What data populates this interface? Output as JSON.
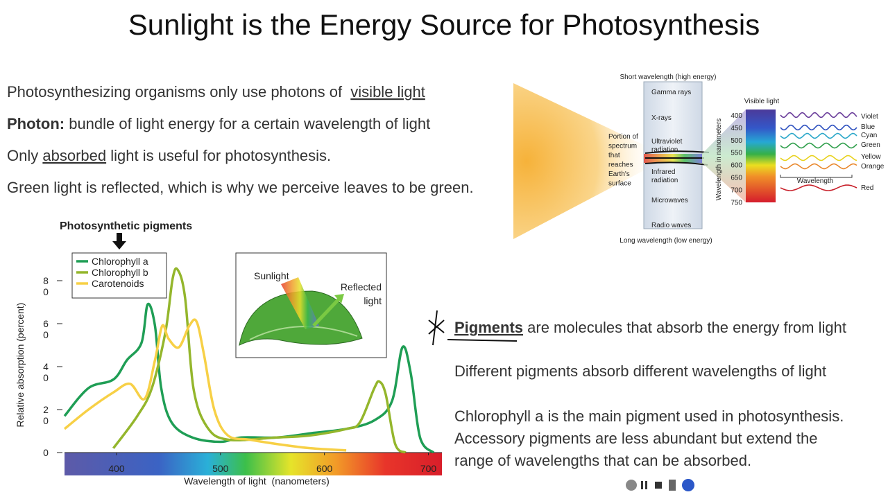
{
  "slide": {
    "title": "Sunlight is the Energy Source for Photosynthesis",
    "bullets": [
      [
        {
          "text": "Photosynthesizing organisms only use photons of  "
        },
        {
          "text": "visible light",
          "underline": true
        }
      ],
      [
        {
          "text": "Photon:",
          "bold": true
        },
        {
          "text": " bundle of light energy for a certain wavelength of light"
        }
      ],
      [
        {
          "text": "Only "
        },
        {
          "text": "absorbed",
          "underline": true
        },
        {
          "text": " light is useful for photosynthesis."
        }
      ],
      [
        {
          "text": "Green light is reflected, which is why we perceive leaves to be green."
        }
      ]
    ],
    "notes": [
      [
        {
          "text": "Pigments",
          "bold": true,
          "underline": true
        },
        {
          "text": " are molecules that absorb the energy from light"
        }
      ],
      [
        {
          "text": "Different pigments absorb different wavelengths of light"
        }
      ]
    ],
    "chlorophyll_note": [
      "Chlorophyll a is the main pigment used in photosynthesis.",
      "Accessory pigments are less abundant but extend the",
      "range of wavelengths that can be absorbed."
    ]
  },
  "em_spectrum": {
    "top_label": "Short wavelength (high energy)",
    "bottom_label": "Long wavelength (low energy)",
    "bands": [
      [
        "Gamma rays"
      ],
      [
        "X-rays"
      ],
      [
        "Ultraviolet",
        "radiation"
      ],
      [
        "Infrared",
        "radiation"
      ],
      [
        "Microwaves"
      ],
      [
        "Radio waves"
      ]
    ],
    "surface_label": [
      "Portion of",
      "spectrum",
      "that",
      "reaches",
      "Earth's",
      "surface"
    ],
    "visible_label": "Visible light",
    "axis_label": "Wavelength in nanometers",
    "wavelengths": [
      400,
      450,
      500,
      550,
      600,
      650,
      700,
      750
    ],
    "colors": [
      {
        "name": "Violet",
        "color": "#6a3d9a"
      },
      {
        "name": "Blue",
        "color": "#2c4fbf"
      },
      {
        "name": "Cyan",
        "color": "#2aa7c9"
      },
      {
        "name": "Green",
        "color": "#2e9e4a"
      },
      {
        "name": "Yellow",
        "color": "#e8d21e"
      },
      {
        "name": "Orange",
        "color": "#e8862a"
      },
      {
        "name": "Red",
        "color": "#c8202a"
      }
    ],
    "wave_label": "Wavelength"
  },
  "leaf_inset": {
    "sunlight": "Sunlight",
    "reflected": [
      "Reflected",
      "light"
    ]
  },
  "chart_data": {
    "type": "line",
    "title": "Photosynthetic pigments",
    "x_label": "Wavelength of light  (nanometers)",
    "y_label": "Relative absorption (percent)",
    "xlim": [
      350,
      713
    ],
    "xticks": [
      400,
      500,
      600,
      700
    ],
    "ylim": [
      0,
      88
    ],
    "yticks": [
      0,
      20,
      40,
      60,
      80
    ],
    "legend": "top-left",
    "series": [
      {
        "name": "Chlorophyll a",
        "color": "#1f9e55",
        "x": [
          350,
          373,
          397,
          410,
          424,
          430,
          437,
          443,
          453,
          473,
          500,
          520,
          554,
          587,
          621,
          648,
          665,
          675,
          683,
          692,
          705
        ],
        "values": [
          17,
          30,
          34,
          43,
          51,
          69,
          59,
          30,
          14,
          7,
          5,
          7,
          7,
          9,
          11,
          15,
          24,
          49,
          37,
          7,
          0
        ]
      },
      {
        "name": "Chlorophyll b",
        "color": "#94b62c",
        "x": [
          397,
          420,
          434,
          447,
          454,
          459,
          466,
          474,
          487,
          507,
          554,
          587,
          621,
          634,
          648,
          653,
          659,
          668,
          678
        ],
        "values": [
          2,
          17,
          30,
          56,
          81,
          85,
          72,
          30,
          12,
          6,
          7,
          8,
          11,
          14,
          30,
          33,
          27,
          4,
          0
        ]
      },
      {
        "name": "Carotenoids",
        "color": "#f7d046",
        "x": [
          350,
          373,
          397,
          413,
          427,
          437,
          444,
          450,
          460,
          470,
          477,
          484,
          494,
          507,
          528,
          554,
          587,
          621
        ],
        "values": [
          11,
          20,
          28,
          32,
          25,
          43,
          59,
          53,
          49,
          59,
          61,
          46,
          20,
          8,
          6,
          4,
          2,
          1
        ]
      }
    ]
  }
}
